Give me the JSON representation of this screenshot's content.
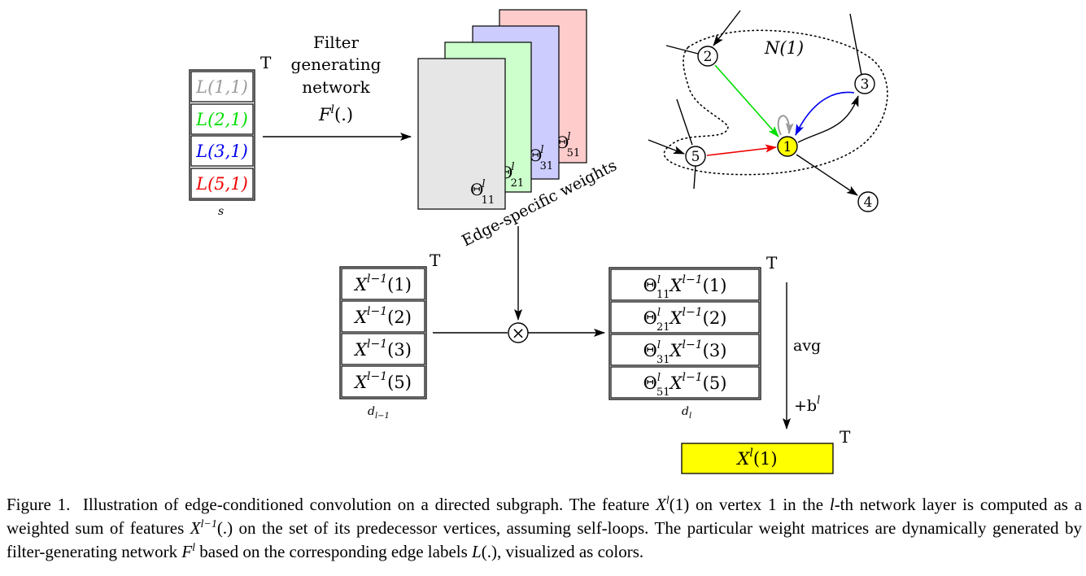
{
  "figure": {
    "edge_labels": {
      "items": [
        {
          "text": "L(1,1)",
          "color": "#9a9a9a"
        },
        {
          "text": "L(2,1)",
          "color": "#00dd00"
        },
        {
          "text": "L(3,1)",
          "color": "#0000ee"
        },
        {
          "text": "L(5,1)",
          "color": "#ee0000"
        }
      ],
      "transpose": "T",
      "dim": "s"
    },
    "filter_network": {
      "line1": "Filter",
      "line2": "generating",
      "line3": "network",
      "line4": "F",
      "line4_sup": "l",
      "line4_tail": "(.)"
    },
    "weights": {
      "sheets": [
        {
          "sym": "Θ",
          "sup": "l",
          "sub": "51",
          "color": "#ffcccc"
        },
        {
          "sym": "Θ",
          "sup": "l",
          "sub": "31",
          "color": "#ccccff"
        },
        {
          "sym": "Θ",
          "sup": "l",
          "sub": "21",
          "color": "#ccffcc"
        },
        {
          "sym": "Θ",
          "sup": "l",
          "sub": "11",
          "color": "#e6e6e6"
        }
      ],
      "label": "Edge-specific weights"
    },
    "graph": {
      "neighborhood_label": "N(1)",
      "nodes": [
        "1",
        "2",
        "3",
        "4",
        "5"
      ],
      "target_color": "#ffff00",
      "edge_colors": {
        "from2": "#00dd00",
        "from3": "#0000ee",
        "from5": "#ee0000",
        "self": "#9a9a9a"
      }
    },
    "input_features": {
      "items": [
        "X^{l−1}(1)",
        "X^{l−1}(2)",
        "X^{l−1}(3)",
        "X^{l−1}(5)"
      ],
      "node_ids": [
        "1",
        "2",
        "3",
        "5"
      ],
      "base": "X",
      "sup": "l−1",
      "transpose": "T",
      "dim": "d",
      "dim_sub": "l−1"
    },
    "multiply_symbol": "×",
    "weighted_features": {
      "items": [
        {
          "theta_sub": "11",
          "node": "1"
        },
        {
          "theta_sub": "21",
          "node": "2"
        },
        {
          "theta_sub": "31",
          "node": "3"
        },
        {
          "theta_sub": "51",
          "node": "5"
        }
      ],
      "transpose": "T",
      "dim": "d",
      "dim_sub": "l"
    },
    "aggregation": {
      "label": "avg",
      "bias": "+b",
      "bias_sup": "l"
    },
    "output": {
      "base": "X",
      "sup": "l",
      "arg": "(1)",
      "transpose": "T",
      "color": "#ffff00"
    }
  },
  "caption": {
    "prefix": "Figure 1.",
    "s1": "Illustration of edge-conditioned convolution on a directed subgraph. The feature ",
    "s1_var": "X",
    "s1_sup": "l",
    "s1_arg": "(1)",
    "s2": " on vertex 1 in the ",
    "s2_var": "l",
    "s3": "-th network layer is computed as a weighted sum of features ",
    "s3_var": "X",
    "s3_sup": "l−1",
    "s3_arg": "(.)",
    "s4": " on the set of its predecessor vertices, assuming self-loops. The particular weight matrices are dynamically generated by filter-generating network ",
    "s4_var": "F",
    "s4_sup": "l",
    "s5": " based on the corresponding edge labels ",
    "s5_var": "L",
    "s5_arg": "(.)",
    "s6": ", visualized as colors."
  }
}
